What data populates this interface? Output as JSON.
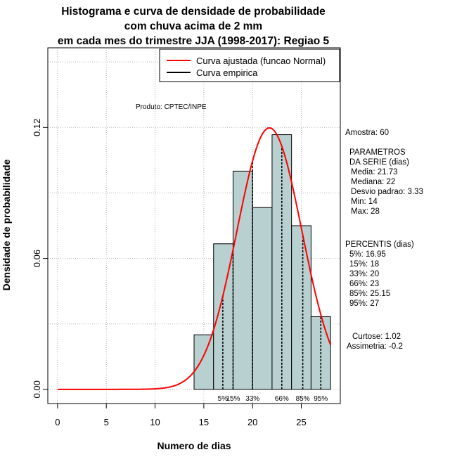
{
  "title_lines": [
    "Histograma e curva de densidade de probabilidade",
    "com chuva acima de 2 mm",
    "em cada mes do trimestre JJA (1998-2017): Regiao 5"
  ],
  "legend": {
    "fitted": "Curva ajustada (funcao Normal)",
    "empirical": "Curva empirica",
    "fitted_color": "#ff0000",
    "empirical_color": "#000000"
  },
  "credit": "Produto: CPTEC/INPE",
  "stats": {
    "sample": "Amostra: 60",
    "params_header_1": "PARAMETROS",
    "params_header_2": "DA SERIE (dias)",
    "mean": "Media: 21.73",
    "median": "Mediana: 22",
    "sd": "Desvio padrao: 3.33",
    "min": "Min: 14",
    "max": "Max: 28",
    "percentis_header": "PERCENTIS (dias)",
    "p5": "5%: 16.95",
    "p15": "15%: 18",
    "p33": "33%: 20",
    "p66": "66%: 23",
    "p85": "85%: 25.15",
    "p95": "95%: 27",
    "kurtosis": "Curtose: 1.02",
    "skewness": "Assimetria: -0.2"
  },
  "colors": {
    "bar_fill": "#b8d0d0",
    "bar_stroke": "#000000",
    "grid": "#b4b4b4"
  },
  "chart_data": {
    "type": "bar",
    "title": "Histograma e curva de densidade de probabilidade com chuva acima de 2 mm em cada mes do trimestre JJA (1998-2017): Regiao 5",
    "xlabel": "Numero de dias",
    "ylabel": "Densidade de probabilidade",
    "xlim": [
      -1,
      29
    ],
    "ylim": [
      -0.0065,
      0.1565
    ],
    "x_ticks": [
      0,
      5,
      10,
      15,
      20,
      25
    ],
    "y_ticks": [
      0.0,
      0.06,
      0.12
    ],
    "y_tick_labels": [
      "0.00",
      "0.06",
      "0.12"
    ],
    "grid": true,
    "legend_position": "top-right",
    "bins": [
      {
        "from": 14,
        "to": 16,
        "density": 0.025
      },
      {
        "from": 16,
        "to": 18,
        "density": 0.0667
      },
      {
        "from": 18,
        "to": 20,
        "density": 0.1
      },
      {
        "from": 20,
        "to": 22,
        "density": 0.0833
      },
      {
        "from": 22,
        "to": 24,
        "density": 0.1167
      },
      {
        "from": 24,
        "to": 26,
        "density": 0.075
      },
      {
        "from": 26,
        "to": 28,
        "density": 0.0333
      }
    ],
    "normal_fit": {
      "mean": 21.73,
      "sd": 3.33,
      "x_from": 0,
      "x_to": 28
    },
    "percentile_lines": [
      {
        "label": "5%",
        "x": 16.95
      },
      {
        "label": "15%",
        "x": 18
      },
      {
        "label": "33%",
        "x": 20
      },
      {
        "label": "66%",
        "x": 23
      },
      {
        "label": "85%",
        "x": 25.15
      },
      {
        "label": "95%",
        "x": 27
      }
    ]
  }
}
